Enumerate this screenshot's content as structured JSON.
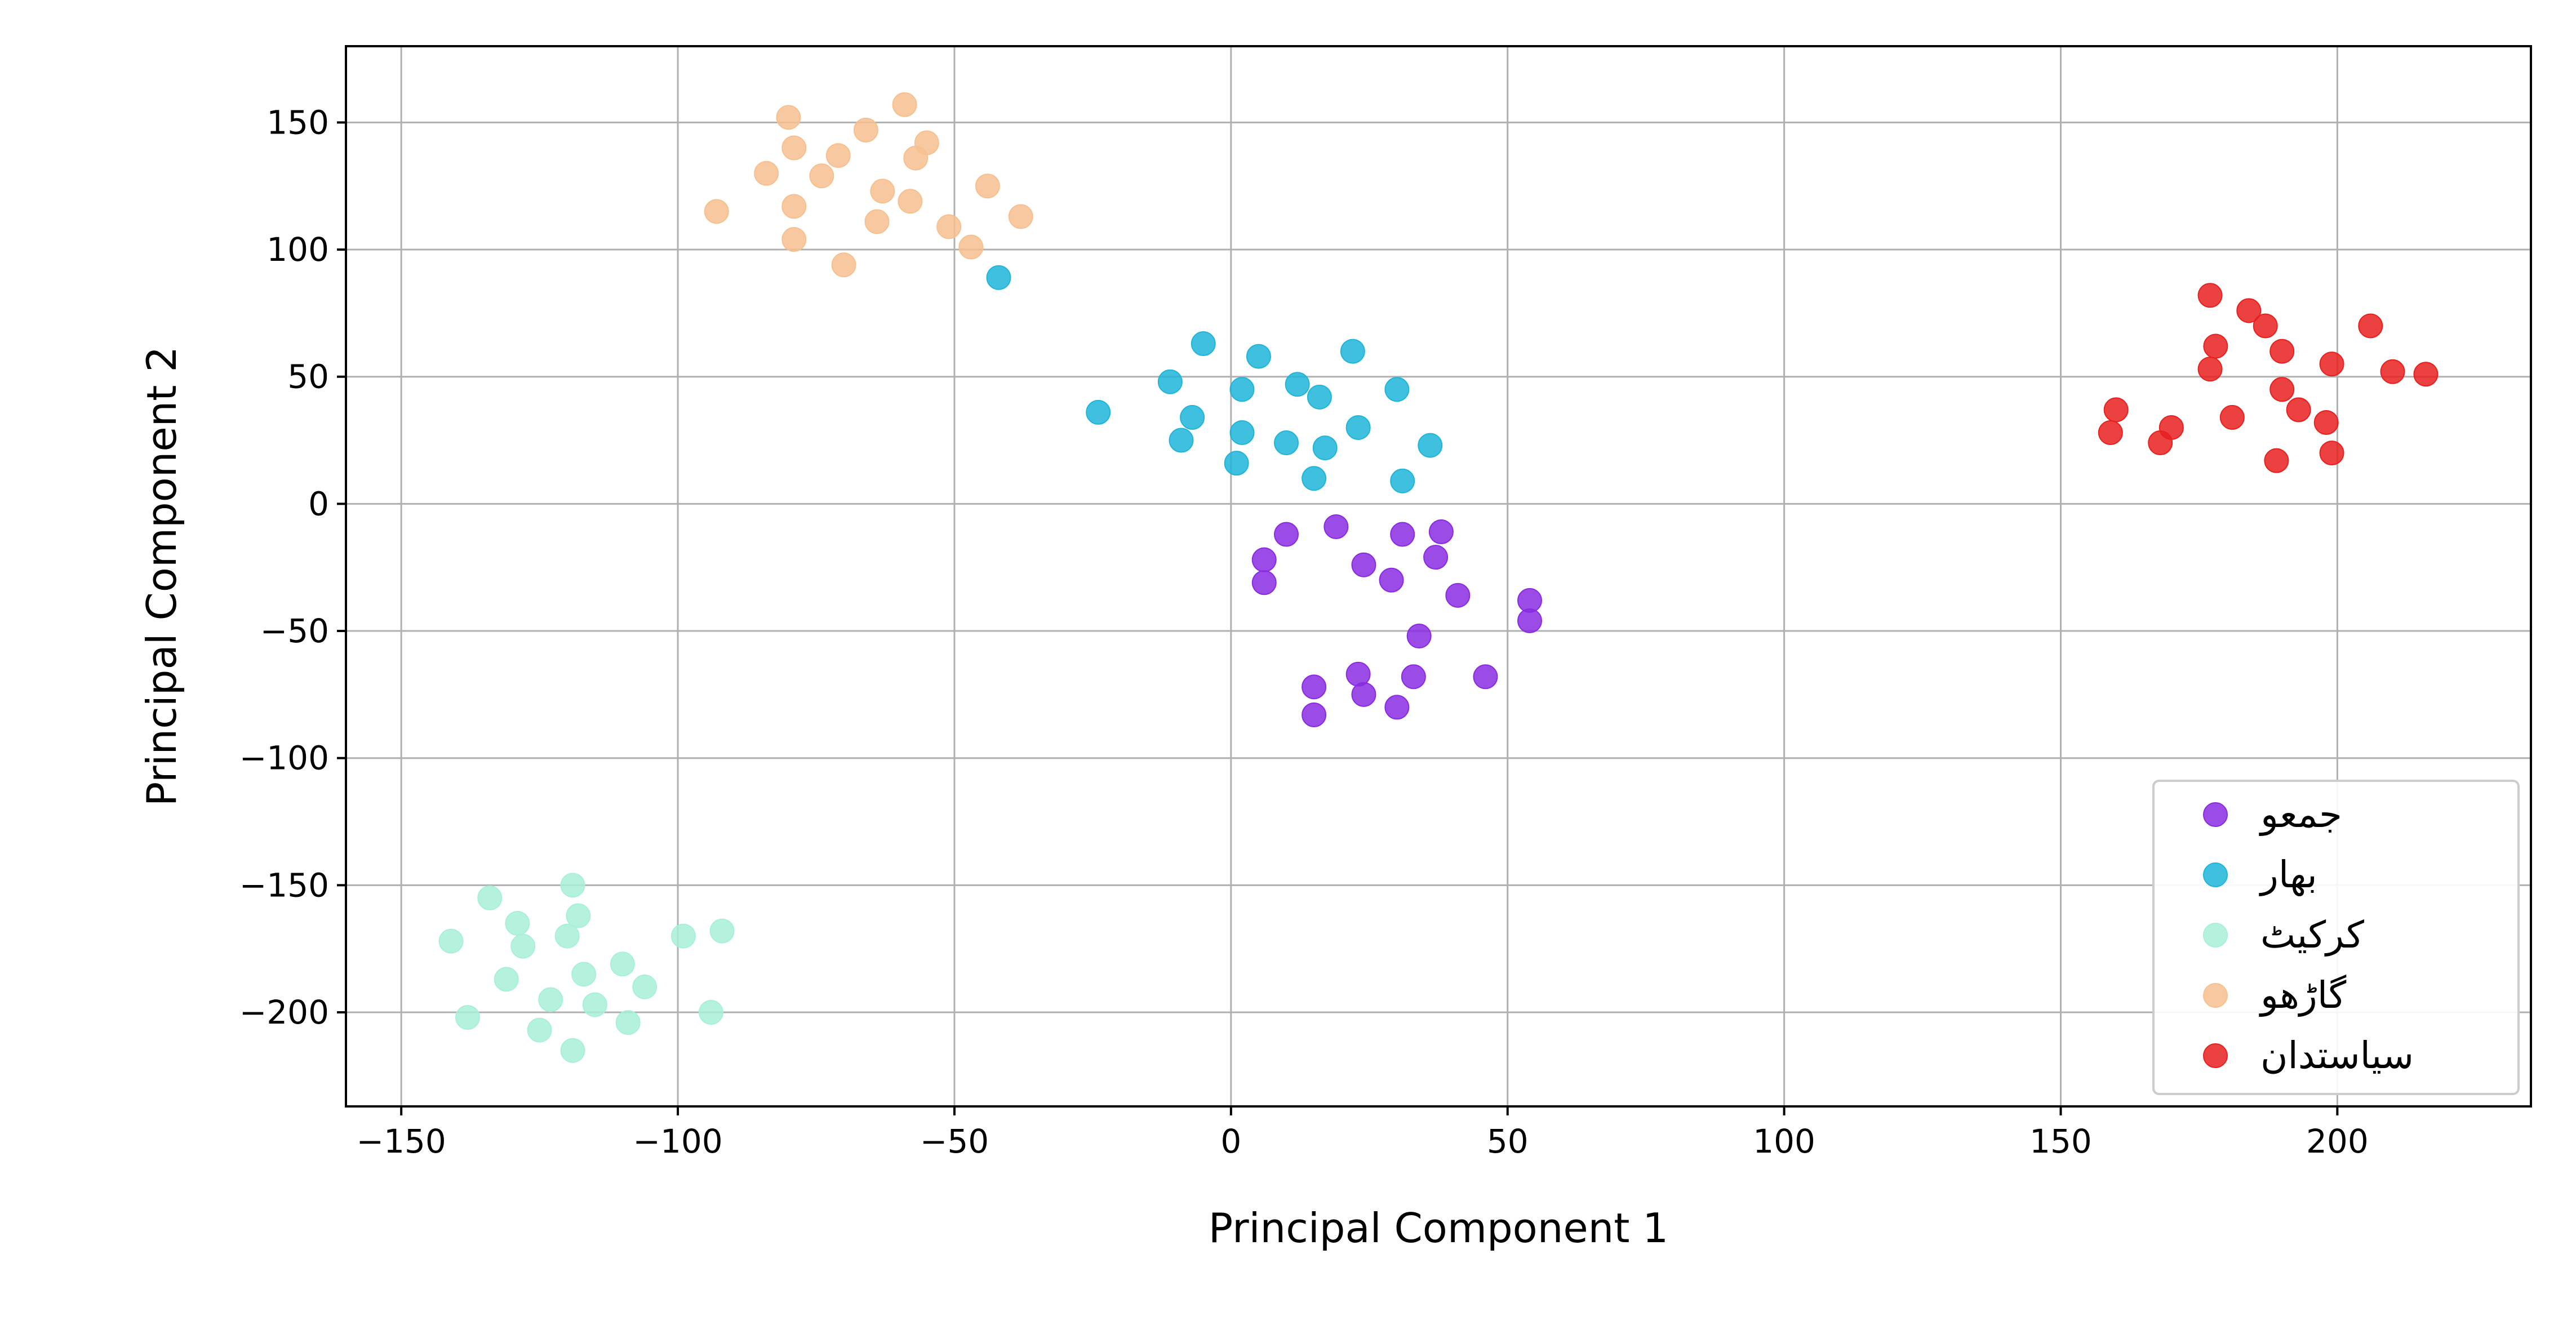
{
  "chart_data": {
    "type": "scatter",
    "title": "",
    "xlabel": "Principal Component 1",
    "ylabel": "Principal Component 2",
    "xlim": [
      -160,
      235
    ],
    "ylim": [
      -237,
      180
    ],
    "xticks": [
      -150,
      -100,
      -50,
      0,
      50,
      100,
      150,
      200
    ],
    "yticks": [
      150,
      100,
      50,
      0,
      -50,
      -100,
      -150,
      -200
    ],
    "xtick_labels": [
      "−150",
      "−100",
      "−50",
      "0",
      "50",
      "100",
      "150",
      "200"
    ],
    "ytick_labels": [
      "150",
      "100",
      "50",
      "0",
      "−50",
      "−100",
      "−150",
      "−200"
    ],
    "grid": true,
    "legend_position": "lower-right",
    "series": [
      {
        "name": "جمعو",
        "color": "#8a2be2",
        "points": [
          [
            10,
            -12
          ],
          [
            19,
            -9
          ],
          [
            31,
            -12
          ],
          [
            38,
            -11
          ],
          [
            6,
            -22
          ],
          [
            6,
            -31
          ],
          [
            24,
            -24
          ],
          [
            29,
            -30
          ],
          [
            37,
            -21
          ],
          [
            41,
            -36
          ],
          [
            54,
            -38
          ],
          [
            54,
            -46
          ],
          [
            34,
            -52
          ],
          [
            15,
            -72
          ],
          [
            23,
            -67
          ],
          [
            24,
            -75
          ],
          [
            33,
            -68
          ],
          [
            46,
            -68
          ],
          [
            30,
            -80
          ],
          [
            15,
            -83
          ]
        ]
      },
      {
        "name": "بهار",
        "color": "#1fb5d9",
        "points": [
          [
            -42,
            89
          ],
          [
            -5,
            63
          ],
          [
            5,
            58
          ],
          [
            22,
            60
          ],
          [
            -11,
            48
          ],
          [
            2,
            45
          ],
          [
            12,
            47
          ],
          [
            16,
            42
          ],
          [
            30,
            45
          ],
          [
            -24,
            36
          ],
          [
            -7,
            34
          ],
          [
            -9,
            25
          ],
          [
            2,
            28
          ],
          [
            10,
            24
          ],
          [
            17,
            22
          ],
          [
            23,
            30
          ],
          [
            36,
            23
          ],
          [
            1,
            16
          ],
          [
            15,
            10
          ],
          [
            31,
            9
          ]
        ]
      },
      {
        "name": "کرکیٹ",
        "color": "#a8f0d8",
        "points": [
          [
            -134,
            -155
          ],
          [
            -119,
            -150
          ],
          [
            -129,
            -165
          ],
          [
            -118,
            -162
          ],
          [
            -141,
            -172
          ],
          [
            -128,
            -174
          ],
          [
            -120,
            -170
          ],
          [
            -99,
            -170
          ],
          [
            -92,
            -168
          ],
          [
            -110,
            -181
          ],
          [
            -117,
            -185
          ],
          [
            -131,
            -187
          ],
          [
            -106,
            -190
          ],
          [
            -123,
            -195
          ],
          [
            -115,
            -197
          ],
          [
            -94,
            -200
          ],
          [
            -138,
            -202
          ],
          [
            -109,
            -204
          ],
          [
            -125,
            -207
          ],
          [
            -119,
            -215
          ]
        ]
      },
      {
        "name": "گاڑھو",
        "color": "#f7c08f",
        "points": [
          [
            -80,
            152
          ],
          [
            -59,
            157
          ],
          [
            -66,
            147
          ],
          [
            -55,
            142
          ],
          [
            -79,
            140
          ],
          [
            -71,
            137
          ],
          [
            -57,
            136
          ],
          [
            -84,
            130
          ],
          [
            -74,
            129
          ],
          [
            -44,
            125
          ],
          [
            -63,
            123
          ],
          [
            -79,
            117
          ],
          [
            -58,
            119
          ],
          [
            -93,
            115
          ],
          [
            -38,
            113
          ],
          [
            -64,
            111
          ],
          [
            -51,
            109
          ],
          [
            -79,
            104
          ],
          [
            -47,
            101
          ],
          [
            -70,
            94
          ]
        ]
      },
      {
        "name": "سیاستدان",
        "color": "#e8201e",
        "points": [
          [
            177,
            82
          ],
          [
            184,
            76
          ],
          [
            187,
            70
          ],
          [
            206,
            70
          ],
          [
            178,
            62
          ],
          [
            190,
            60
          ],
          [
            177,
            53
          ],
          [
            199,
            55
          ],
          [
            210,
            52
          ],
          [
            216,
            51
          ],
          [
            190,
            45
          ],
          [
            193,
            37
          ],
          [
            160,
            37
          ],
          [
            181,
            34
          ],
          [
            170,
            30
          ],
          [
            198,
            32
          ],
          [
            159,
            28
          ],
          [
            168,
            24
          ],
          [
            199,
            20
          ],
          [
            189,
            17
          ]
        ]
      }
    ]
  }
}
